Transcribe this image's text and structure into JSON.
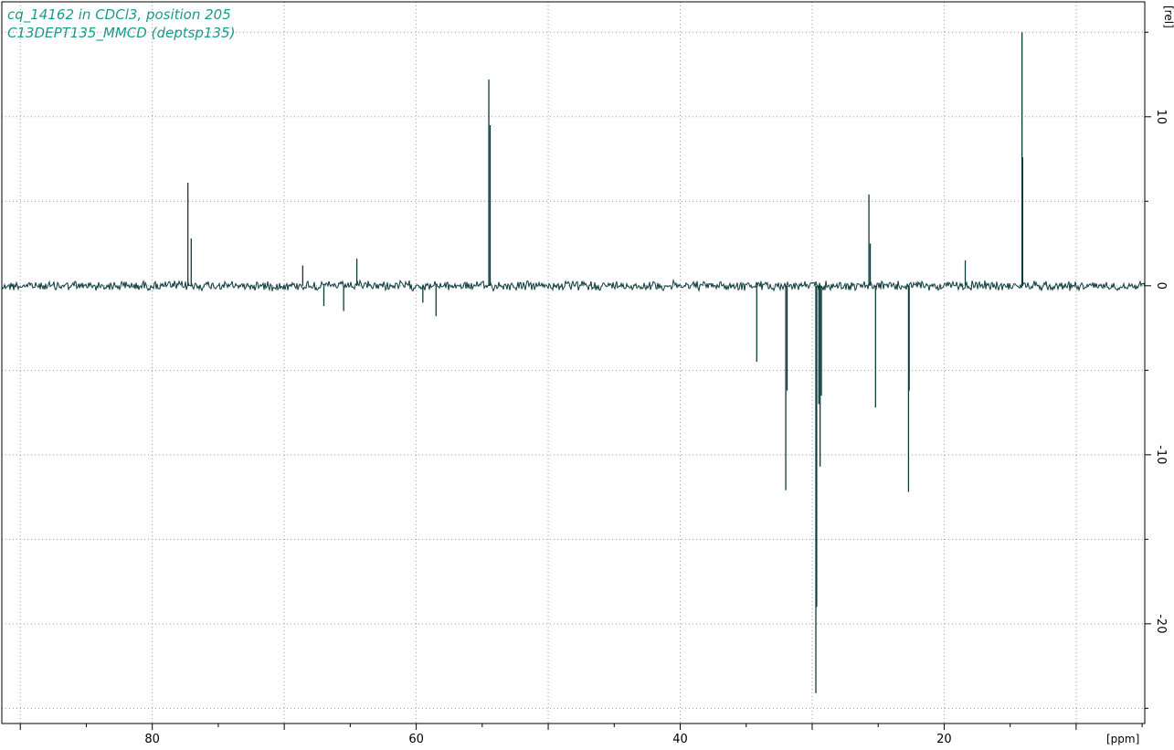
{
  "chart_data": {
    "type": "line",
    "title_lines": [
      "cq_14162 in CDCl3, position 205",
      "C13DEPT135_MMCD (deptsp135)"
    ],
    "xlabel": "[ppm]",
    "ylabel": "[rel]",
    "xlim": [
      91.4,
      4.8
    ],
    "ylim": [
      -25.9,
      16.8
    ],
    "x_major_ticks": [
      80,
      60,
      40,
      20
    ],
    "x_grid": [
      90,
      80,
      70,
      60,
      50,
      40,
      30,
      20,
      10
    ],
    "y_major_ticks": [
      10,
      0,
      -10,
      -20
    ],
    "y_grid": [
      15,
      10,
      5,
      0,
      -5,
      -10,
      -15,
      -20,
      -25
    ],
    "grid": true,
    "baseline": 0,
    "series": [
      {
        "peaks": [
          {
            "x": 77.3,
            "y": 6.1
          },
          {
            "x": 77.05,
            "y": 2.8
          },
          {
            "x": 68.6,
            "y": 1.2
          },
          {
            "x": 64.5,
            "y": 1.6
          },
          {
            "x": 67.0,
            "y": -1.2
          },
          {
            "x": 65.5,
            "y": -1.5
          },
          {
            "x": 59.5,
            "y": -1.0
          },
          {
            "x": 58.5,
            "y": -1.8
          },
          {
            "x": 54.5,
            "y": 12.2
          },
          {
            "x": 54.4,
            "y": 9.5
          },
          {
            "x": 34.2,
            "y": -4.5
          },
          {
            "x": 32.0,
            "y": -12.1
          },
          {
            "x": 31.9,
            "y": -6.2
          },
          {
            "x": 29.72,
            "y": -24.1
          },
          {
            "x": 29.66,
            "y": -19.0
          },
          {
            "x": 29.5,
            "y": -7.0
          },
          {
            "x": 29.4,
            "y": -10.7
          },
          {
            "x": 29.3,
            "y": -6.5
          },
          {
            "x": 25.7,
            "y": 5.4
          },
          {
            "x": 25.6,
            "y": 2.5
          },
          {
            "x": 25.2,
            "y": -7.2
          },
          {
            "x": 22.7,
            "y": -12.2
          },
          {
            "x": 22.65,
            "y": -6.2
          },
          {
            "x": 18.4,
            "y": 1.5
          },
          {
            "x": 14.1,
            "y": 15.0
          },
          {
            "x": 14.05,
            "y": 7.6
          }
        ]
      }
    ]
  }
}
